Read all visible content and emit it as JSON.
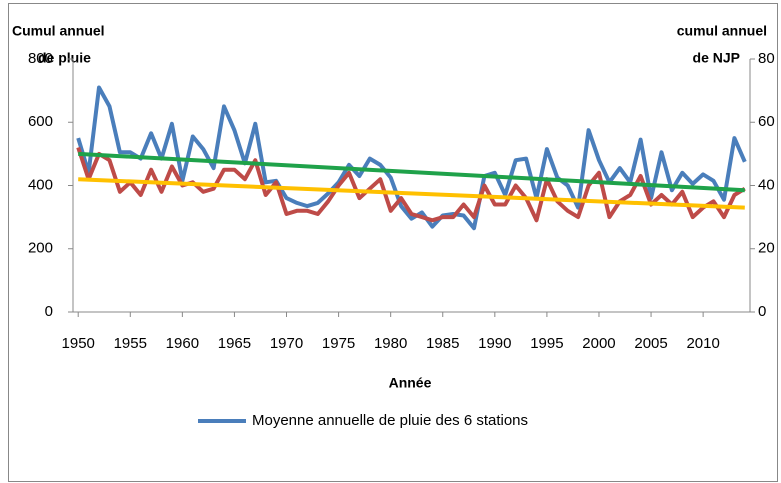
{
  "chart_data": {
    "type": "line",
    "y_label": [
      "Cumul annuel",
      "de pluie"
    ],
    "y2_label": [
      "cumul annuel",
      "de NJP"
    ],
    "x_label": "Année",
    "x": [
      1950,
      1951,
      1952,
      1953,
      1954,
      1955,
      1956,
      1957,
      1958,
      1959,
      1960,
      1961,
      1962,
      1963,
      1964,
      1965,
      1966,
      1967,
      1968,
      1969,
      1970,
      1971,
      1972,
      1973,
      1974,
      1975,
      1976,
      1977,
      1978,
      1979,
      1980,
      1981,
      1982,
      1983,
      1984,
      1985,
      1986,
      1987,
      1988,
      1989,
      1990,
      1991,
      1992,
      1993,
      1994,
      1995,
      1996,
      1997,
      1998,
      1999,
      2000,
      2001,
      2002,
      2003,
      2004,
      2005,
      2006,
      2007,
      2008,
      2009,
      2010,
      2011,
      2012,
      2013,
      2014
    ],
    "xlim": [
      1949.5,
      2014.5
    ],
    "xticks": [
      1950,
      1955,
      1960,
      1965,
      1970,
      1975,
      1980,
      1985,
      1990,
      1995,
      2000,
      2005,
      2010
    ],
    "ylim": [
      0,
      800
    ],
    "yticks": [
      0,
      200,
      400,
      600,
      800
    ],
    "y2lim": [
      0,
      80
    ],
    "y2ticks": [
      0,
      20,
      40,
      60,
      80
    ],
    "legend": "bottom",
    "series": [
      {
        "name": "Moyenne annuelle de pluie des 6 stations",
        "color": "#4a7ebb",
        "values": [
          550,
          440,
          710,
          650,
          505,
          505,
          485,
          565,
          485,
          595,
          415,
          555,
          515,
          455,
          650,
          575,
          470,
          595,
          410,
          415,
          360,
          345,
          335,
          345,
          375,
          410,
          465,
          430,
          485,
          465,
          425,
          335,
          295,
          315,
          270,
          305,
          310,
          305,
          265,
          430,
          440,
          370,
          480,
          485,
          360,
          515,
          425,
          400,
          330,
          575,
          480,
          410,
          455,
          410,
          545,
          360,
          505,
          385,
          440,
          405,
          435,
          415,
          355,
          550,
          475
        ]
      },
      {
        "color": "#be4b48",
        "axis": "y2",
        "values": [
          52,
          42,
          50,
          48,
          38,
          41,
          37,
          45,
          38,
          46,
          40,
          41,
          38,
          39,
          45,
          45,
          42,
          48,
          37,
          41,
          31,
          32,
          32,
          31,
          35,
          40,
          44,
          36,
          39,
          42,
          32,
          36,
          31,
          30,
          29,
          30,
          30,
          34,
          30,
          40,
          34,
          34,
          40,
          36,
          29,
          42,
          35,
          32,
          30,
          40,
          44,
          30,
          35,
          37,
          43,
          34,
          37,
          34,
          38,
          30,
          33,
          35,
          30,
          37,
          39
        ]
      },
      {
        "color": "#1fa24a",
        "x": [
          1950,
          2014
        ],
        "values": [
          500,
          385
        ]
      },
      {
        "color": "#ffc000",
        "axis": "y2",
        "x": [
          1950,
          2014
        ],
        "values": [
          42,
          33
        ]
      }
    ]
  }
}
